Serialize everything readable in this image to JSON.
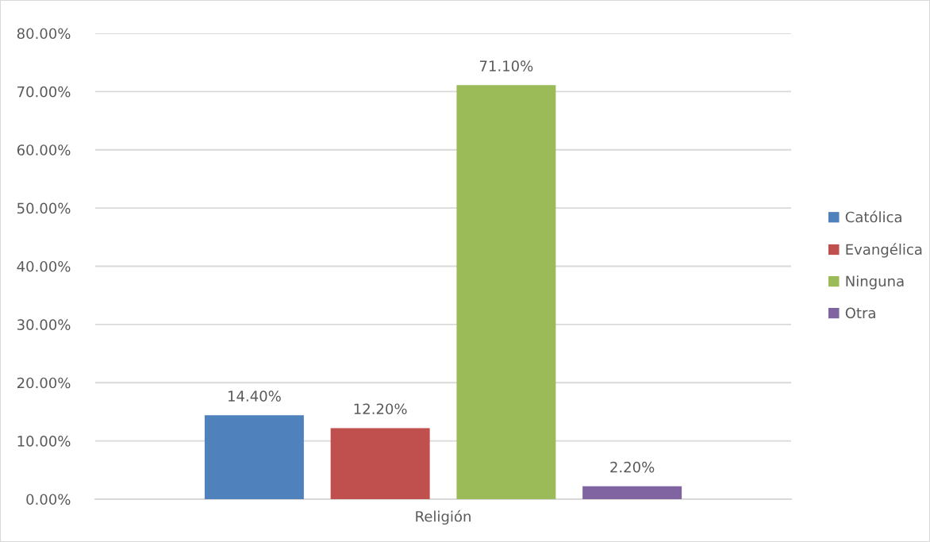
{
  "chart_data": {
    "type": "bar",
    "categories": [
      "Religión"
    ],
    "series": [
      {
        "name": "Católica",
        "color": "#4f81bd",
        "values": [
          14.4
        ],
        "value_labels": [
          "14.40%"
        ]
      },
      {
        "name": "Evangélica",
        "color": "#c0504d",
        "values": [
          12.2
        ],
        "value_labels": [
          "12.20%"
        ]
      },
      {
        "name": "Ninguna",
        "color": "#9bbb59",
        "values": [
          71.1
        ],
        "value_labels": [
          "71.10%"
        ]
      },
      {
        "name": "Otra",
        "color": "#8064a2",
        "values": [
          2.2
        ],
        "value_labels": [
          "2.20%"
        ]
      }
    ],
    "ylim": [
      0,
      80
    ],
    "yticks": [
      {
        "value": 0,
        "label": "0.00%"
      },
      {
        "value": 10,
        "label": "10.00%"
      },
      {
        "value": 20,
        "label": "20.00%"
      },
      {
        "value": 30,
        "label": "30.00%"
      },
      {
        "value": 40,
        "label": "40.00%"
      },
      {
        "value": 50,
        "label": "50.00%"
      },
      {
        "value": 60,
        "label": "60.00%"
      },
      {
        "value": 70,
        "label": "70.00%"
      },
      {
        "value": 80,
        "label": "80.00%"
      }
    ],
    "grid": "y",
    "legend": "right"
  }
}
